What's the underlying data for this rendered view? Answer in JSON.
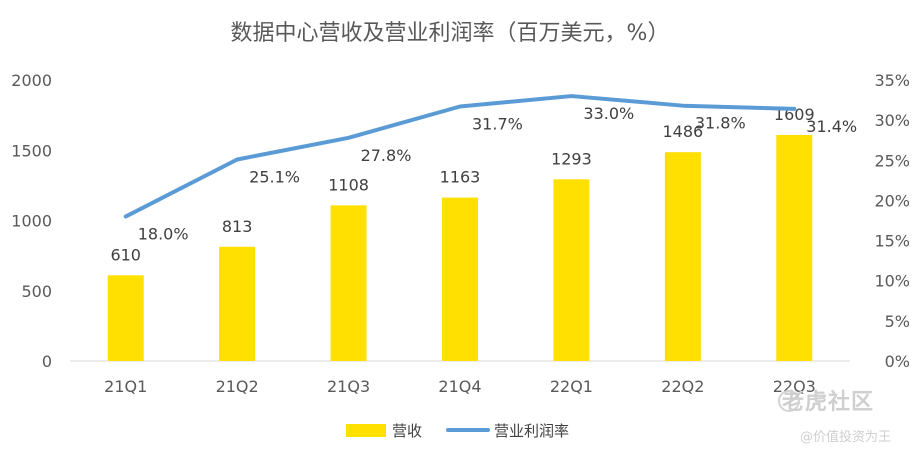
{
  "chart_data": {
    "type": "bar+line",
    "title": "数据中心营收及营业利润率（百万美元，%）",
    "categories": [
      "21Q1",
      "21Q2",
      "21Q3",
      "21Q4",
      "22Q1",
      "22Q2",
      "22Q3"
    ],
    "series": [
      {
        "name": "营收",
        "type": "bar",
        "axis": "left",
        "color": "#FFE000",
        "values": [
          610,
          813,
          1108,
          1163,
          1293,
          1486,
          1609
        ],
        "labels": [
          "610",
          "813",
          "1108",
          "1163",
          "1293",
          "1486",
          "1609"
        ]
      },
      {
        "name": "营业利润率",
        "type": "line",
        "axis": "right",
        "color": "#5B9BD5",
        "values": [
          18.0,
          25.1,
          27.8,
          31.7,
          33.0,
          31.8,
          31.4
        ],
        "labels": [
          "18.0%",
          "25.1%",
          "27.8%",
          "31.7%",
          "33.0%",
          "31.8%",
          "31.4%"
        ]
      }
    ],
    "y_left": {
      "min": 0,
      "max": 2000,
      "ticks": [
        "0",
        "500",
        "1000",
        "1500",
        "2000"
      ]
    },
    "y_right": {
      "min": 0,
      "max": 35,
      "ticks": [
        "0%",
        "5%",
        "10%",
        "15%",
        "20%",
        "25%",
        "30%",
        "35%"
      ]
    },
    "grid": false,
    "legend_position": "bottom-center"
  },
  "watermark": {
    "main": "老虎社区",
    "sub": "@价值投资为王"
  }
}
